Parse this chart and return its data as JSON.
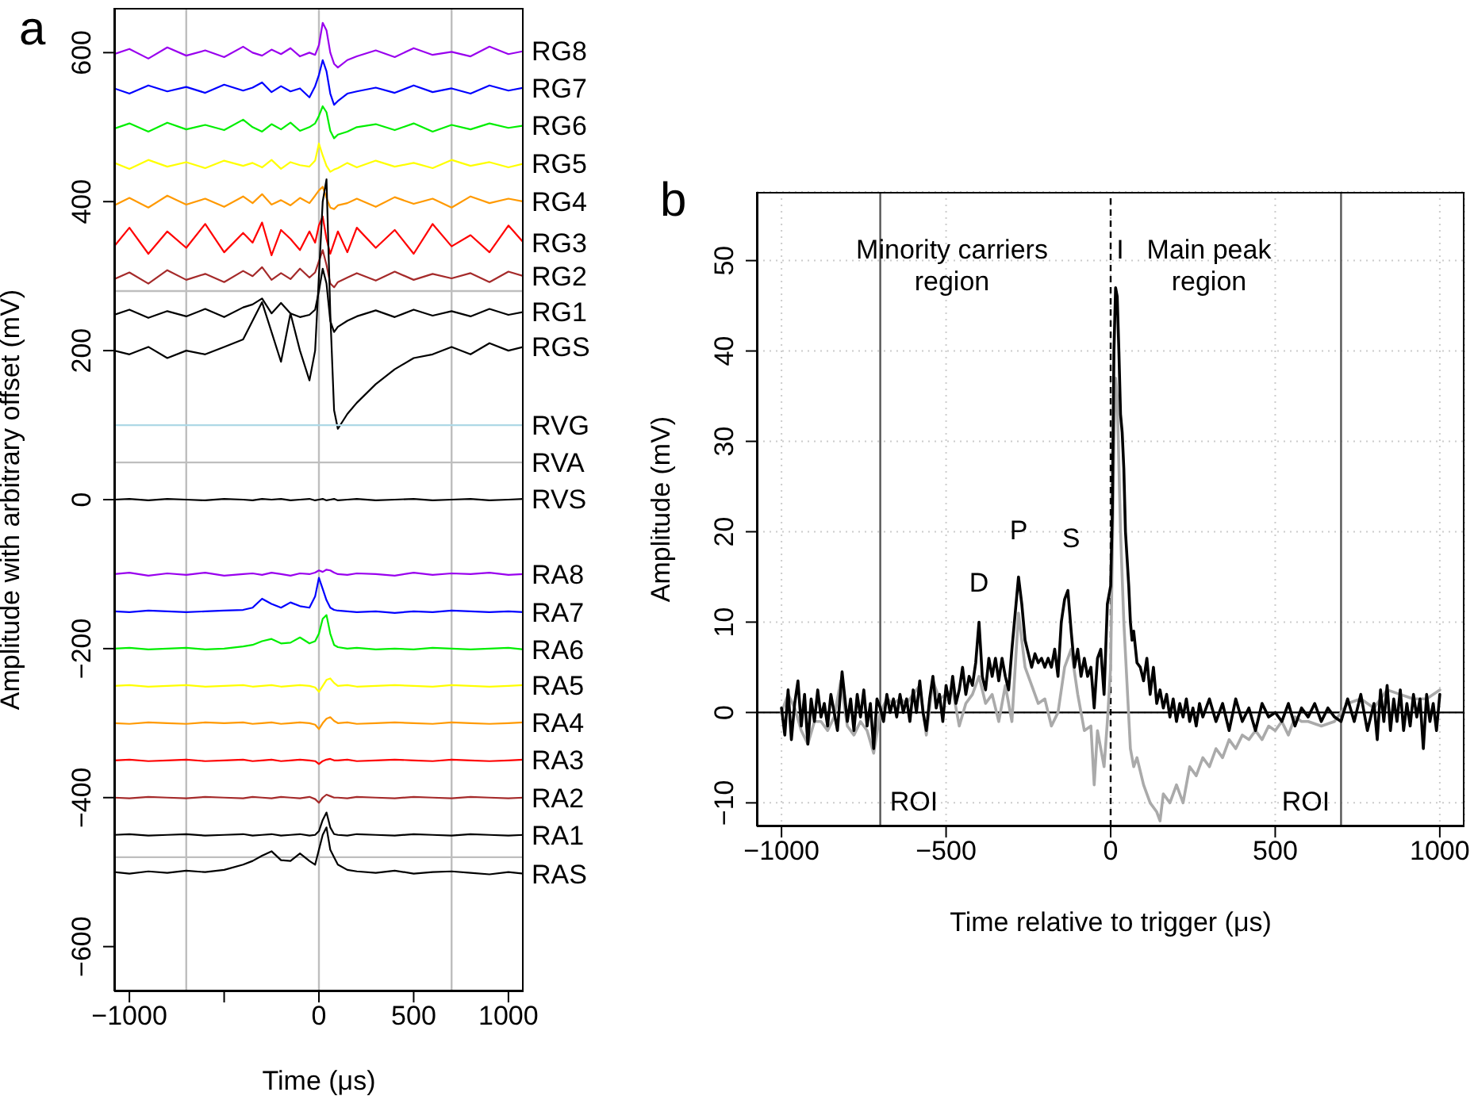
{
  "chart_data": [
    {
      "type": "line",
      "title": "a",
      "xlabel": "Time (μs)",
      "ylabel": "Amplitude with arbitrary offset (mV)",
      "xlim": [
        -1080,
        1080
      ],
      "ylim": [
        -660,
        660
      ],
      "xticks": [
        -1000,
        {
          "value": -500,
          "label": null
        },
        0,
        500,
        1000
      ],
      "yticks": [
        -600,
        -400,
        -200,
        0,
        200,
        400,
        600
      ],
      "grid": false,
      "legend": false,
      "marker": "none",
      "line_style": "solid",
      "x": [
        -1080,
        -1000,
        -900,
        -800,
        -700,
        -600,
        -500,
        -400,
        -350,
        -300,
        -250,
        -200,
        -150,
        -100,
        -50,
        -20,
        0,
        20,
        40,
        60,
        80,
        100,
        150,
        200,
        300,
        400,
        500,
        600,
        700,
        800,
        900,
        1000,
        1080
      ],
      "ref_lines": [
        {
          "axis": "x",
          "value": -700,
          "color": "#bebebe"
        },
        {
          "axis": "x",
          "value": 0,
          "color": "#bebebe"
        },
        {
          "axis": "x",
          "value": 700,
          "color": "#bebebe"
        },
        {
          "axis": "y",
          "value": 280,
          "color": "#bebebe"
        },
        {
          "axis": "y",
          "value": -480,
          "color": "#bebebe"
        }
      ],
      "series": [
        {
          "name": "RG8",
          "color": "#9900ee",
          "values": [
            598,
            605,
            592,
            607,
            596,
            603,
            594,
            608,
            600,
            596,
            604,
            598,
            606,
            595,
            600,
            597,
            610,
            640,
            630,
            600,
            585,
            580,
            590,
            595,
            603,
            594,
            606,
            597,
            601,
            595,
            608,
            598,
            602
          ]
        },
        {
          "name": "RG7",
          "color": "#0000ff",
          "values": [
            552,
            545,
            556,
            548,
            554,
            546,
            557,
            549,
            553,
            560,
            547,
            555,
            548,
            552,
            540,
            555,
            570,
            590,
            575,
            545,
            530,
            535,
            545,
            548,
            553,
            546,
            556,
            547,
            552,
            545,
            556,
            549,
            553
          ]
        },
        {
          "name": "RG6",
          "color": "#00ee00",
          "values": [
            498,
            505,
            494,
            506,
            497,
            503,
            496,
            510,
            500,
            494,
            504,
            497,
            506,
            495,
            500,
            505,
            515,
            528,
            520,
            495,
            485,
            490,
            494,
            500,
            504,
            496,
            505,
            494,
            503,
            497,
            505,
            499,
            502
          ]
        },
        {
          "name": "RG5",
          "color": "#ffff00",
          "values": [
            452,
            444,
            456,
            447,
            453,
            445,
            455,
            448,
            452,
            446,
            456,
            444,
            453,
            449,
            447,
            455,
            478,
            462,
            448,
            440,
            443,
            445,
            452,
            446,
            455,
            447,
            452,
            445,
            456,
            448,
            453,
            446,
            451
          ]
        },
        {
          "name": "RG4",
          "color": "#ff9900",
          "values": [
            395,
            405,
            392,
            408,
            396,
            404,
            393,
            407,
            398,
            410,
            396,
            402,
            395,
            405,
            398,
            408,
            415,
            420,
            405,
            392,
            390,
            395,
            398,
            404,
            393,
            406,
            397,
            404,
            392,
            407,
            398,
            404,
            400
          ]
        },
        {
          "name": "RG3",
          "color": "#ff0000",
          "values": [
            340,
            365,
            330,
            360,
            338,
            370,
            332,
            358,
            345,
            372,
            328,
            362,
            350,
            335,
            360,
            345,
            368,
            380,
            350,
            330,
            345,
            360,
            332,
            365,
            338,
            362,
            330,
            370,
            340,
            355,
            332,
            368,
            345
          ]
        },
        {
          "name": "RG2",
          "color": "#a52a2a",
          "values": [
            296,
            305,
            290,
            308,
            295,
            303,
            292,
            307,
            300,
            312,
            295,
            304,
            296,
            310,
            298,
            305,
            320,
            335,
            315,
            290,
            285,
            292,
            298,
            304,
            294,
            306,
            295,
            303,
            297,
            304,
            292,
            306,
            300
          ]
        },
        {
          "name": "RG1",
          "color": "#000000",
          "values": [
            248,
            255,
            244,
            253,
            246,
            256,
            245,
            258,
            262,
            270,
            250,
            264,
            250,
            245,
            248,
            255,
            280,
            310,
            290,
            240,
            225,
            232,
            240,
            246,
            254,
            245,
            255,
            247,
            253,
            246,
            256,
            248,
            252
          ]
        },
        {
          "name": "RGS",
          "color": "#000000",
          "values": [
            200,
            195,
            205,
            190,
            200,
            195,
            205,
            215,
            240,
            265,
            225,
            185,
            250,
            200,
            160,
            200,
            300,
            400,
            430,
            250,
            120,
            95,
            115,
            130,
            155,
            175,
            190,
            195,
            205,
            195,
            210,
            200,
            205
          ]
        },
        {
          "name": "RVG",
          "color": "#add8e6",
          "values": [
            100,
            100,
            100,
            100,
            100,
            100,
            100,
            100,
            100,
            100,
            100,
            100,
            100,
            100,
            100,
            100,
            100,
            100,
            100,
            100,
            100,
            100,
            100,
            100,
            100,
            100,
            100,
            100,
            100,
            100,
            100,
            100,
            100
          ]
        },
        {
          "name": "RVA",
          "color": "#bebebe",
          "values": [
            50,
            50,
            50,
            50,
            50,
            50,
            50,
            50,
            50,
            50,
            50,
            50,
            50,
            50,
            50,
            50,
            50,
            50,
            50,
            50,
            50,
            50,
            50,
            50,
            50,
            50,
            50,
            50,
            50,
            50,
            50,
            50,
            50
          ]
        },
        {
          "name": "RVS",
          "color": "#000000",
          "values": [
            0,
            1,
            -1,
            1,
            0,
            -1,
            1,
            0,
            -1,
            1,
            0,
            1,
            -1,
            0,
            1,
            -1,
            0,
            1,
            -1,
            0,
            1,
            -1,
            0,
            1,
            -1,
            0,
            1,
            -1,
            0,
            1,
            -1,
            0,
            1
          ]
        },
        {
          "name": "RA8",
          "color": "#9900ee",
          "values": [
            -100,
            -98,
            -102,
            -99,
            -101,
            -98,
            -102,
            -100,
            -99,
            -101,
            -98,
            -100,
            -102,
            -99,
            -100,
            -98,
            -95,
            -97,
            -94,
            -95,
            -98,
            -100,
            -101,
            -99,
            -100,
            -102,
            -98,
            -101,
            -99,
            -100,
            -98,
            -101,
            -100
          ]
        },
        {
          "name": "RA7",
          "color": "#0000ff",
          "values": [
            -150,
            -151,
            -149,
            -150,
            -151,
            -150,
            -149,
            -148,
            -145,
            -133,
            -140,
            -145,
            -138,
            -143,
            -145,
            -130,
            -105,
            -120,
            -135,
            -145,
            -148,
            -149,
            -150,
            -151,
            -150,
            -152,
            -150,
            -151,
            -149,
            -150,
            -151,
            -150,
            -151
          ]
        },
        {
          "name": "RA6",
          "color": "#00ee00",
          "values": [
            -200,
            -199,
            -201,
            -200,
            -199,
            -201,
            -200,
            -197,
            -195,
            -190,
            -187,
            -193,
            -192,
            -185,
            -193,
            -190,
            -180,
            -160,
            -155,
            -180,
            -195,
            -198,
            -200,
            -199,
            -201,
            -200,
            -201,
            -199,
            -200,
            -201,
            -200,
            -199,
            -201
          ]
        },
        {
          "name": "RA5",
          "color": "#ffff00",
          "values": [
            -250,
            -249,
            -251,
            -250,
            -249,
            -251,
            -250,
            -249,
            -251,
            -250,
            -249,
            -251,
            -250,
            -249,
            -250,
            -252,
            -258,
            -250,
            -242,
            -240,
            -246,
            -250,
            -249,
            -251,
            -250,
            -249,
            -250,
            -251,
            -249,
            -250,
            -251,
            -250,
            -249
          ]
        },
        {
          "name": "RA4",
          "color": "#ff9900",
          "values": [
            -300,
            -301,
            -299,
            -300,
            -301,
            -299,
            -300,
            -299,
            -301,
            -300,
            -299,
            -301,
            -300,
            -299,
            -300,
            -302,
            -308,
            -300,
            -294,
            -292,
            -297,
            -300,
            -299,
            -301,
            -300,
            -299,
            -300,
            -301,
            -299,
            -300,
            -301,
            -300,
            -299
          ]
        },
        {
          "name": "RA3",
          "color": "#ff0000",
          "values": [
            -350,
            -349,
            -351,
            -350,
            -349,
            -351,
            -350,
            -349,
            -351,
            -350,
            -349,
            -351,
            -350,
            -349,
            -350,
            -351,
            -355,
            -351,
            -349,
            -348,
            -350,
            -350,
            -349,
            -351,
            -350,
            -349,
            -350,
            -351,
            -349,
            -350,
            -351,
            -350,
            -349
          ]
        },
        {
          "name": "RA2",
          "color": "#a52a2a",
          "values": [
            -400,
            -401,
            -399,
            -400,
            -401,
            -399,
            -400,
            -401,
            -399,
            -400,
            -401,
            -399,
            -400,
            -401,
            -399,
            -402,
            -407,
            -400,
            -396,
            -398,
            -400,
            -400,
            -401,
            -399,
            -400,
            -401,
            -399,
            -400,
            -401,
            -399,
            -400,
            -401,
            -400
          ]
        },
        {
          "name": "RA1",
          "color": "#000000",
          "values": [
            -450,
            -449,
            -451,
            -450,
            -449,
            -451,
            -450,
            -449,
            -451,
            -450,
            -449,
            -451,
            -450,
            -449,
            -451,
            -450,
            -445,
            -430,
            -420,
            -440,
            -449,
            -450,
            -451,
            -449,
            -450,
            -451,
            -449,
            -450,
            -451,
            -449,
            -450,
            -451,
            -450
          ]
        },
        {
          "name": "RAS",
          "color": "#000000",
          "values": [
            -500,
            -502,
            -499,
            -501,
            -498,
            -500,
            -497,
            -490,
            -485,
            -478,
            -472,
            -484,
            -485,
            -475,
            -485,
            -490,
            -470,
            -450,
            -440,
            -470,
            -480,
            -490,
            -497,
            -499,
            -501,
            -498,
            -502,
            -500,
            -499,
            -501,
            -503,
            -500,
            -502
          ]
        }
      ]
    },
    {
      "type": "line",
      "title": "b",
      "xlabel": "Time relative to trigger (μs)",
      "ylabel": "Amplitude (mV)",
      "xlim": [
        -1075,
        1075
      ],
      "ylim": [
        -12.6,
        57.6
      ],
      "xticks": [
        -1000,
        -500,
        0,
        500,
        1000
      ],
      "yticks": [
        -10,
        0,
        10,
        20,
        30,
        40,
        50
      ],
      "grid": true,
      "legend": false,
      "marker": "none",
      "line_style": "solid",
      "ref_lines": [
        {
          "axis": "x",
          "value": -700,
          "color": "#555555"
        },
        {
          "axis": "x",
          "value": 0,
          "color": "#000000",
          "line_style": "dashed"
        },
        {
          "axis": "x",
          "value": 700,
          "color": "#555555"
        },
        {
          "axis": "y",
          "value": 0,
          "color": "#000000"
        }
      ],
      "annotations": [
        "Minority carriers\nregion",
        "Main peak\nregion",
        "ROI",
        "ROI",
        "D",
        "P",
        "S",
        "I"
      ],
      "series": [
        {
          "color": "#aaaaaa",
          "x": [
            -1000,
            -980,
            -960,
            -940,
            -920,
            -900,
            -880,
            -860,
            -840,
            -820,
            -800,
            -780,
            -760,
            -740,
            -720,
            -700,
            -680,
            -660,
            -640,
            -620,
            -600,
            -580,
            -560,
            -540,
            -520,
            -500,
            -480,
            -460,
            -440,
            -420,
            -400,
            -380,
            -360,
            -340,
            -320,
            -300,
            -280,
            -260,
            -240,
            -220,
            -200,
            -180,
            -160,
            -140,
            -120,
            -100,
            -80,
            -60,
            -50,
            -40,
            -20,
            -10,
            0,
            10,
            15,
            20,
            30,
            40,
            50,
            60,
            70,
            80,
            100,
            120,
            140,
            150,
            160,
            180,
            200,
            220,
            240,
            260,
            280,
            300,
            320,
            340,
            360,
            380,
            400,
            420,
            440,
            460,
            480,
            500,
            520,
            540,
            560,
            580,
            600,
            640,
            680,
            720,
            760,
            800,
            840,
            880,
            920,
            960,
            1000
          ],
          "values": [
            0,
            2,
            0.5,
            -2,
            -3.5,
            -1,
            -1,
            -2,
            -0.5,
            3.5,
            -1.5,
            -2.5,
            -1,
            -2,
            -4.5,
            0,
            1.5,
            1,
            1.5,
            1,
            2,
            3,
            -2.5,
            3.5,
            1.5,
            2,
            2.5,
            -1.5,
            1,
            2,
            4,
            1,
            2,
            -1,
            3,
            -1,
            11,
            5,
            3,
            1,
            1.5,
            -1.5,
            0,
            5,
            7,
            2,
            -2,
            -1.5,
            -8,
            -2,
            -6,
            -1,
            5,
            30,
            37,
            35,
            20,
            10,
            3,
            -4,
            -6,
            -5,
            -8,
            -10,
            -11,
            -12,
            -9,
            -10,
            -8,
            -10,
            -6,
            -7,
            -5,
            -6,
            -4,
            -5,
            -3,
            -4,
            -2.5,
            -3,
            -2,
            -3,
            -1.5,
            -2,
            -1,
            -2.5,
            -0.5,
            -1,
            -1,
            -1.5,
            -1,
            1,
            1.5,
            0.5,
            2.5,
            2,
            1.5,
            1.5,
            2.5
          ]
        },
        {
          "color": "#000000",
          "x": [
            -1000,
            -990,
            -980,
            -970,
            -960,
            -950,
            -940,
            -930,
            -920,
            -910,
            -900,
            -890,
            -880,
            -870,
            -860,
            -850,
            -840,
            -830,
            -816,
            -800,
            -790,
            -780,
            -770,
            -760,
            -750,
            -740,
            -730,
            -720,
            -710,
            -700,
            -690,
            -680,
            -670,
            -660,
            -650,
            -640,
            -630,
            -620,
            -610,
            -600,
            -590,
            -580,
            -570,
            -560,
            -550,
            -540,
            -530,
            -520,
            -510,
            -500,
            -490,
            -480,
            -470,
            -460,
            -450,
            -440,
            -430,
            -420,
            -410,
            -400,
            -390,
            -380,
            -370,
            -360,
            -350,
            -340,
            -330,
            -320,
            -310,
            -300,
            -290,
            -280,
            -270,
            -260,
            -250,
            -240,
            -230,
            -220,
            -210,
            -200,
            -190,
            -180,
            -170,
            -160,
            -150,
            -140,
            -130,
            -120,
            -110,
            -100,
            -90,
            -80,
            -70,
            -60,
            -50,
            -40,
            -30,
            -20,
            -10,
            0,
            5,
            10,
            15,
            20,
            25,
            30,
            35,
            40,
            45,
            50,
            55,
            60,
            65,
            70,
            80,
            90,
            100,
            110,
            120,
            130,
            140,
            150,
            160,
            170,
            180,
            190,
            200,
            210,
            220,
            230,
            240,
            250,
            260,
            270,
            280,
            300,
            320,
            340,
            360,
            380,
            400,
            420,
            440,
            460,
            480,
            500,
            520,
            540,
            560,
            580,
            600,
            620,
            640,
            660,
            680,
            700,
            720,
            740,
            760,
            780,
            800,
            810,
            820,
            830,
            840,
            850,
            860,
            870,
            880,
            890,
            900,
            910,
            920,
            930,
            940,
            950,
            960,
            970,
            980,
            990,
            1000
          ],
          "values": [
            0.5,
            -2.5,
            2.5,
            -3,
            1,
            3.5,
            -1.5,
            2,
            -3.5,
            1.5,
            -1,
            2.5,
            -0.5,
            1,
            -1.5,
            2,
            0,
            -2,
            4.5,
            -1,
            1.5,
            -2,
            2,
            -0.5,
            2.5,
            -1.5,
            1,
            -4,
            1.5,
            0.5,
            -1,
            2,
            0,
            1.5,
            -0.5,
            2,
            0,
            1.5,
            -1,
            2.5,
            0,
            3.5,
            0,
            -2,
            1.5,
            4,
            0.5,
            2,
            -1,
            3,
            1,
            4,
            1,
            2.5,
            5,
            2,
            4,
            3,
            5.5,
            10,
            4,
            2.5,
            6,
            4,
            6,
            3.5,
            6,
            4,
            2.5,
            7,
            11,
            15,
            12,
            8,
            6.5,
            5,
            6.5,
            5.5,
            6,
            5,
            6,
            5,
            7,
            4,
            10,
            12.5,
            13.5,
            9,
            5,
            7,
            4,
            6,
            4,
            5,
            0.5,
            6,
            7,
            2,
            12,
            14,
            22,
            40,
            47,
            46,
            40,
            33,
            31,
            27,
            20,
            17,
            14,
            10,
            8,
            9,
            5.5,
            5,
            3.5,
            6,
            2,
            5,
            1,
            2.5,
            0.5,
            2,
            -0.5,
            1.5,
            -1,
            1,
            -0.5,
            1.5,
            -1,
            0.5,
            -1.5,
            1,
            -0.5,
            1.5,
            -1,
            1,
            -2,
            1.5,
            -1,
            0.5,
            -2,
            1,
            -0.5,
            0,
            -1,
            1,
            -1.5,
            0.5,
            -0.5,
            1,
            -1,
            0.5,
            -0.5,
            -1,
            1.5,
            -1,
            2,
            -2,
            1,
            -3,
            2.5,
            -1,
            3,
            -2,
            1.5,
            -1,
            2.5,
            -2,
            1,
            -1.5,
            2,
            -0.5,
            1.5,
            -4,
            2,
            -1,
            1,
            -2,
            2
          ]
        }
      ]
    }
  ]
}
